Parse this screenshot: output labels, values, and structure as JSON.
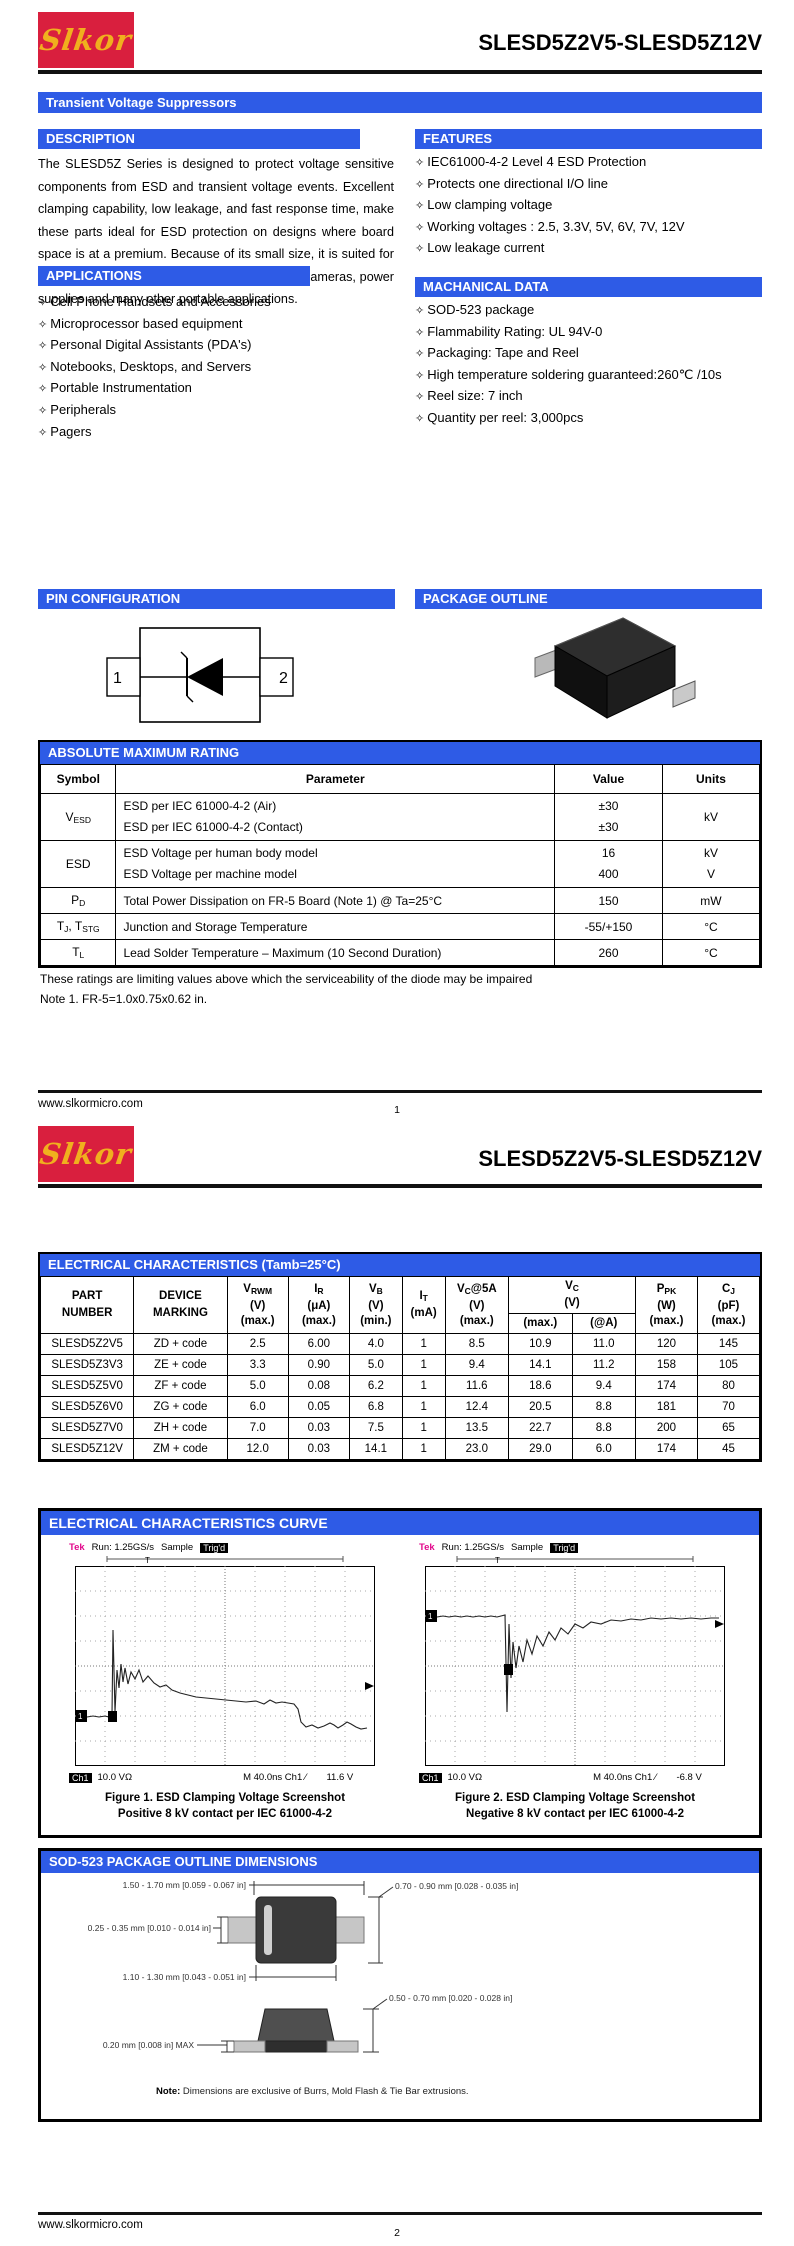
{
  "brand": "Slkor",
  "doc_title": "SLESD5Z2V5-SLESD5Z12V",
  "page1": {
    "product_family": "Transient Voltage Suppressors",
    "description": {
      "heading": "DESCRIPTION",
      "body": "The SLESD5Z Series is designed to protect voltage sensitive components from ESD and transient voltage events. Excellent clamping capability, low leakage, and fast response time, make these parts ideal for ESD protection on designs where board space is at a premium. Because of its small size, it is suited for use in cellular phones, portable devices, digital cameras, power supplies and many other portable applications."
    },
    "features": {
      "heading": "FEATURES",
      "items": [
        "IEC61000-4-2 Level 4 ESD Protection",
        "Protects one directional I/O line",
        "Low clamping voltage",
        "Working voltages : 2.5, 3.3V, 5V, 6V, 7V, 12V",
        "Low leakage current"
      ]
    },
    "mechanical": {
      "heading": "MACHANICAL DATA",
      "items": [
        "SOD-523 package",
        "Flammability Rating: UL 94V-0",
        "Packaging: Tape and Reel",
        "High temperature soldering guaranteed:260℃ /10s",
        "Reel size: 7 inch",
        "Quantity per reel: 3,000pcs"
      ]
    },
    "applications": {
      "heading": "APPLICATIONS",
      "items": [
        "Cell Phone Handsets and Accessories",
        "Microprocessor based equipment",
        "Personal Digital Assistants (PDA's)",
        "Notebooks, Desktops, and Servers",
        "Portable Instrumentation",
        "Peripherals",
        "Pagers"
      ]
    },
    "pin_configuration": {
      "heading": "PIN CONFIGURATION",
      "pin1": "1",
      "pin2": "2"
    },
    "package_outline": {
      "heading": "PACKAGE OUTLINE"
    },
    "amr": {
      "heading": "ABSOLUTE MAXIMUM RATING",
      "col_symbol": "Symbol",
      "col_parameter": "Parameter",
      "col_value": "Value",
      "col_units": "Units",
      "r1": {
        "sym": "V",
        "sub": "ESD",
        "params": "ESD per IEC 61000-4-2 (Air)\nESD per IEC 61000-4-2 (Contact)",
        "values": "±30\n±30",
        "units": "kV"
      },
      "r2": {
        "sym": "ESD",
        "params": "ESD Voltage per human body model\nESD Voltage per machine model",
        "values": "16\n400",
        "units": "kV\nV"
      },
      "r3": {
        "sym": "P",
        "sub": "D",
        "param": "Total Power Dissipation on FR-5 Board (Note 1) @ Ta=25°C",
        "value": "150",
        "units": "mW"
      },
      "r4": {
        "sym1": "T",
        "sub1": "J",
        "sym2": ", T",
        "sub2": "STG",
        "param": "Junction and Storage Temperature",
        "value": "-55/+150",
        "units": "°C"
      },
      "r5": {
        "sym": "T",
        "sub": "L",
        "param": "Lead Solder Temperature – Maximum (10 Second Duration)",
        "value": "260",
        "units": "°C"
      }
    },
    "rating_note1": "These ratings are limiting values above which the serviceability of the diode may be impaired",
    "rating_note2": "Note 1. FR-5=1.0x0.75x0.62 in.",
    "footer": {
      "url": "www.slkormicro.com",
      "page": "1"
    }
  },
  "page2": {
    "ec": {
      "heading": "ELECTRICAL CHARACTERISTICS (Tamb=25°C)",
      "h_part": "PART\nNUMBER",
      "h_marking": "DEVICE\nMARKING",
      "h_vrwm": {
        "m": "V",
        "s": "RWM",
        "u": "(V)",
        "q": "(max.)"
      },
      "h_ir": {
        "m": "I",
        "s": "R",
        "u": "(μA)",
        "q": "(max.)"
      },
      "h_vb": {
        "m": "V",
        "s": "B",
        "u": "(V)",
        "q": "(min.)"
      },
      "h_it": {
        "m": "I",
        "s": "T",
        "u": "(mA)"
      },
      "h_vc5a": {
        "m": "V",
        "s": "C",
        "x": "@5A",
        "u": "(V)",
        "q": "(max.)"
      },
      "h_vc": {
        "m": "V",
        "s": "C",
        "u": "(V)",
        "q1": "(max.)",
        "q2": "(@A)"
      },
      "h_ppk": {
        "m": "P",
        "s": "PK",
        "u": "(W)",
        "q": "(max.)"
      },
      "h_cj": {
        "m": "C",
        "s": "J",
        "u": "(pF)",
        "q": "(max.)"
      },
      "rows": [
        [
          "SLESD5Z2V5",
          "ZD + code",
          "2.5",
          "6.00",
          "4.0",
          "1",
          "8.5",
          "10.9",
          "11.0",
          "120",
          "145"
        ],
        [
          "SLESD5Z3V3",
          "ZE + code",
          "3.3",
          "0.90",
          "5.0",
          "1",
          "9.4",
          "14.1",
          "11.2",
          "158",
          "105"
        ],
        [
          "SLESD5Z5V0",
          "ZF + code",
          "5.0",
          "0.08",
          "6.2",
          "1",
          "11.6",
          "18.6",
          "9.4",
          "174",
          "80"
        ],
        [
          "SLESD5Z6V0",
          "ZG + code",
          "6.0",
          "0.05",
          "6.8",
          "1",
          "12.4",
          "20.5",
          "8.8",
          "181",
          "70"
        ],
        [
          "SLESD5Z7V0",
          "ZH + code",
          "7.0",
          "0.03",
          "7.5",
          "1",
          "13.5",
          "22.7",
          "8.8",
          "200",
          "65"
        ],
        [
          "SLESD5Z12V",
          "ZM + code",
          "12.0",
          "0.03",
          "14.1",
          "1",
          "23.0",
          "29.0",
          "6.0",
          "174",
          "45"
        ]
      ]
    },
    "curves": {
      "heading": "ELECTRICAL CHARACTERISTICS CURVE",
      "scopes": [
        {
          "tek": "Tek",
          "run": "Run: 1.25GS/s",
          "sample": "Sample",
          "trig": "Trig'd",
          "ch_badge": "Ch1",
          "vdiv": "10.0 VΩ",
          "trigger": "M 40.0ns  Ch1 ∕",
          "level": "11.6 V",
          "cap1": "Figure 1. ESD Clamping Voltage Screenshot",
          "cap2": "Positive 8 kV contact per IEC 61000-4-2"
        },
        {
          "tek": "Tek",
          "run": "Run: 1.25GS/s",
          "sample": "Sample",
          "trig": "Trig'd",
          "ch_badge": "Ch1",
          "vdiv": "10.0 VΩ",
          "trigger": "M 40.0ns  Ch1 ∕",
          "level": "-6.8 V",
          "cap1": "Figure 2. ESD Clamping Voltage Screenshot",
          "cap2": "Negative 8 kV contact per IEC 61000-4-2"
        }
      ]
    },
    "sod": {
      "heading": "SOD-523 PACKAGE OUTLINE DIMENSIONS",
      "dims": {
        "body_width": "1.50 - 1.70 mm [0.059 - 0.067 in]",
        "lead_width": "0.25 - 0.35 mm [0.010 - 0.014 in]",
        "body_length": "1.10 - 1.30 mm [0.043 - 0.051 in]",
        "total_height_top": "0.70 - 0.90 mm [0.028 - 0.035 in]",
        "height_side": "0.50 - 0.70 mm [0.020 - 0.028 in]",
        "standoff": "0.20 mm [0.008 in] MAX"
      },
      "note_label": "Note:",
      "note": " Dimensions are exclusive of Burrs, Mold Flash & Tie Bar extrusions."
    },
    "footer": {
      "url": "www.slkormicro.com",
      "page": "2"
    }
  }
}
